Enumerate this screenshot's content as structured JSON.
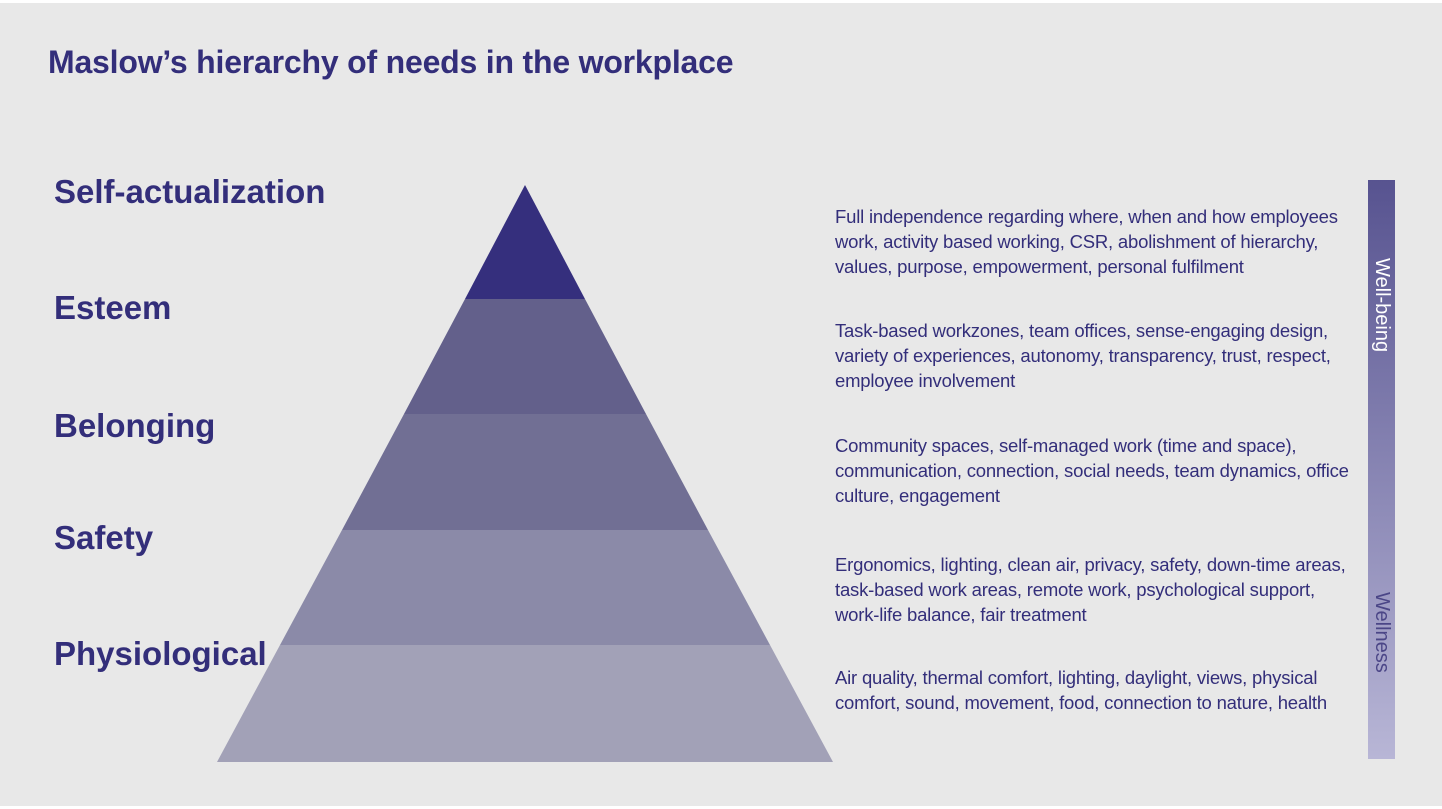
{
  "title": "Maslow’s hierarchy of needs in the workplace",
  "levels": [
    {
      "name": "Self-actualization",
      "description": "Full independence regarding where, when and how employees work, activity based working, CSR, abolishment of hierarchy, values, purpose, empowerment, personal fulfilment",
      "color": "#352f7d"
    },
    {
      "name": "Esteem",
      "description": "Task-based workzones, team offices, sense-engaging design, variety of experiences, autonomy, transparency, trust, respect, employee involvement",
      "color": "#63608b"
    },
    {
      "name": "Belonging",
      "description": "Community spaces, self-managed work (time and space), communication, connection, social needs, team dynamics, office culture, engagement",
      "color": "#716f94"
    },
    {
      "name": "Safety",
      "description": "Ergonomics, lighting, clean air, privacy, safety, down-time areas, task-based work areas, remote work, psychological support, work-life balance, fair treatment",
      "color": "#8b8aa8"
    },
    {
      "name": "Physiological",
      "description": "Air quality, thermal comfort, lighting, daylight, views, physical comfort, sound, movement, food, connection to nature, health",
      "color": "#a2a1b7"
    }
  ],
  "scale": {
    "top_label": "Well-being",
    "bottom_label": "Wellness",
    "top_color": "#575390",
    "bottom_color": "#b8b6d6"
  },
  "colors": {
    "text": "#332e7a",
    "background": "#e8e8e8"
  }
}
